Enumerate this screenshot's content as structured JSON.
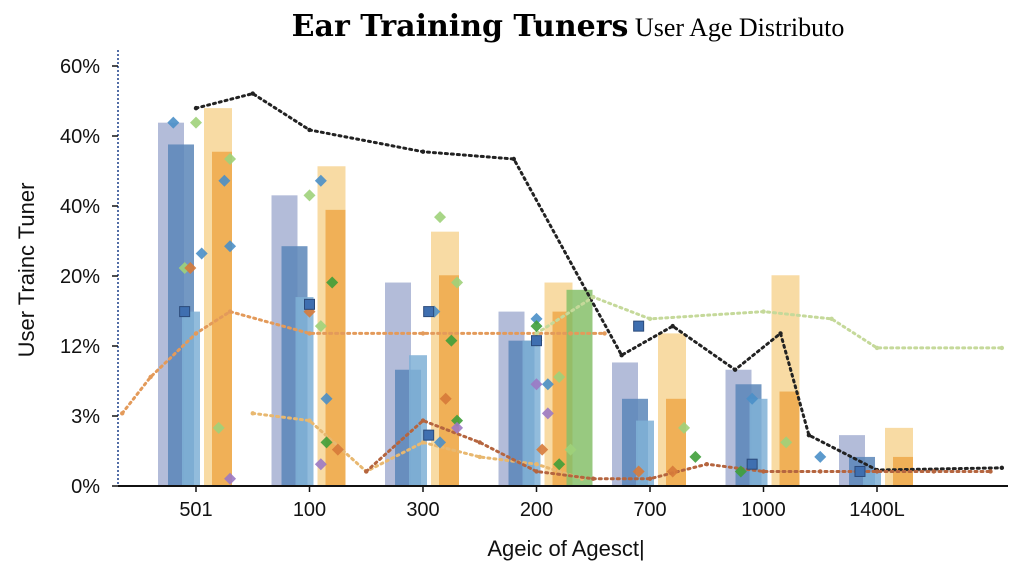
{
  "chart_data": {
    "type": "bar",
    "title_bold": "Ear Training Tuners",
    "title_rest": " User Age Distributo",
    "xlabel": "Ageic of Agesct|",
    "ylabel": "User Trainc Tuner",
    "categories": [
      "501",
      "100",
      "300",
      "200",
      "700",
      "1000",
      "1400L"
    ],
    "y_tick_labels": [
      "0%",
      "3%",
      "12%",
      "20%",
      "40%",
      "40%",
      "60%"
    ],
    "grid": false,
    "series": [
      {
        "kind": "bar",
        "color": "#9aa6cc",
        "values": [
          50,
          40,
          28,
          24,
          17,
          16,
          7
        ]
      },
      {
        "kind": "bar",
        "color": "#5b86b8",
        "values": [
          47,
          33,
          16,
          20,
          12,
          14,
          4
        ]
      },
      {
        "kind": "bar",
        "color": "#7fb0d6",
        "values": [
          24,
          26,
          18,
          20,
          9,
          12,
          2
        ]
      },
      {
        "kind": "bar",
        "color": "#f5cf86",
        "values": [
          52,
          44,
          35,
          28,
          21,
          29,
          8
        ]
      },
      {
        "kind": "bar",
        "color": "#eea84a",
        "values": [
          46,
          38,
          29,
          24,
          12,
          13,
          4
        ]
      },
      {
        "kind": "bar",
        "color": "#86c06a",
        "values": [
          0,
          0,
          0,
          27,
          0,
          0,
          0
        ]
      },
      {
        "kind": "line",
        "style": "dotted",
        "color": "#222222",
        "x": [
          0,
          0.5,
          1,
          2,
          2.8,
          3.75,
          4.2,
          4.75,
          5.15,
          5.4,
          6,
          7.1
        ],
        "values": [
          52,
          54,
          49,
          46,
          45,
          18,
          22,
          16,
          21,
          7,
          2.2,
          2.5
        ]
      },
      {
        "kind": "line",
        "style": "dotted",
        "color": "#e39a5a",
        "x": [
          -0.65,
          -0.4,
          0,
          0.3,
          1,
          2,
          3,
          3.3,
          3.6
        ],
        "values": [
          10,
          15,
          21,
          24,
          21,
          21,
          21,
          21,
          21
        ]
      },
      {
        "kind": "line",
        "style": "dotted",
        "color": "#c5d99a",
        "x": [
          3,
          3.5,
          4,
          5,
          5.6,
          6,
          7.1
        ],
        "values": [
          21,
          26,
          23,
          24,
          23,
          19,
          19
        ]
      },
      {
        "kind": "line",
        "style": "dotted",
        "color": "#e8b870",
        "x": [
          0.5,
          1,
          1.5,
          2,
          2.5,
          3,
          3.4
        ],
        "values": [
          10,
          9,
          2,
          6,
          4,
          3,
          1
        ]
      },
      {
        "kind": "line",
        "style": "dotted",
        "color": "#b5653f",
        "x": [
          1.5,
          2,
          2.5,
          3,
          3.5,
          4,
          4.5,
          5,
          5.5,
          6,
          6.5,
          7
        ],
        "values": [
          2,
          9,
          6,
          2,
          1,
          1,
          3,
          2,
          2,
          2,
          2,
          2
        ]
      }
    ],
    "markers": [
      {
        "color": "#4a8fc8",
        "shape": "diamond",
        "points": [
          [
            -0.2,
            50
          ],
          [
            0.25,
            42
          ],
          [
            0.3,
            33
          ],
          [
            0.05,
            32
          ],
          [
            1.1,
            42
          ],
          [
            1.15,
            12
          ],
          [
            2.1,
            24
          ],
          [
            2.15,
            6
          ],
          [
            3.0,
            23
          ],
          [
            3.1,
            14
          ],
          [
            4.9,
            12
          ],
          [
            5.5,
            4
          ]
        ]
      },
      {
        "color": "#9ed27a",
        "shape": "diamond",
        "points": [
          [
            0.0,
            50
          ],
          [
            0.3,
            45
          ],
          [
            -0.1,
            30
          ],
          [
            0.2,
            8
          ],
          [
            1.0,
            40
          ],
          [
            1.1,
            22
          ],
          [
            2.15,
            37
          ],
          [
            2.3,
            28
          ],
          [
            3.0,
            20
          ],
          [
            3.2,
            15
          ],
          [
            3.3,
            5
          ],
          [
            4.3,
            8
          ],
          [
            5.2,
            6
          ]
        ]
      },
      {
        "color": "#3f9e3a",
        "shape": "diamond",
        "points": [
          [
            1.2,
            28
          ],
          [
            1.15,
            6
          ],
          [
            2.25,
            20
          ],
          [
            2.3,
            9
          ],
          [
            3.0,
            22
          ],
          [
            3.2,
            3
          ],
          [
            4.4,
            4
          ],
          [
            4.8,
            2
          ]
        ]
      },
      {
        "color": "#9b79c4",
        "shape": "diamond",
        "points": [
          [
            0.3,
            1
          ],
          [
            1.1,
            3
          ],
          [
            2.3,
            8
          ],
          [
            3.0,
            14
          ],
          [
            3.1,
            10
          ]
        ]
      },
      {
        "color": "#d67a3a",
        "shape": "diamond",
        "points": [
          [
            -0.05,
            30
          ],
          [
            1.0,
            24
          ],
          [
            1.25,
            5
          ],
          [
            2.2,
            12
          ],
          [
            3.05,
            5
          ],
          [
            3.9,
            2
          ],
          [
            4.2,
            2
          ]
        ]
      },
      {
        "color": "#3f6fb0",
        "shape": "square",
        "points": [
          [
            -0.1,
            24
          ],
          [
            1.0,
            25
          ],
          [
            2.05,
            24
          ],
          [
            2.05,
            7
          ],
          [
            3.0,
            20
          ],
          [
            3.9,
            22
          ],
          [
            4.9,
            3
          ],
          [
            5.85,
            2
          ]
        ]
      }
    ],
    "ylim": [
      0,
      60
    ],
    "ylim_display": "0% to 60%"
  }
}
